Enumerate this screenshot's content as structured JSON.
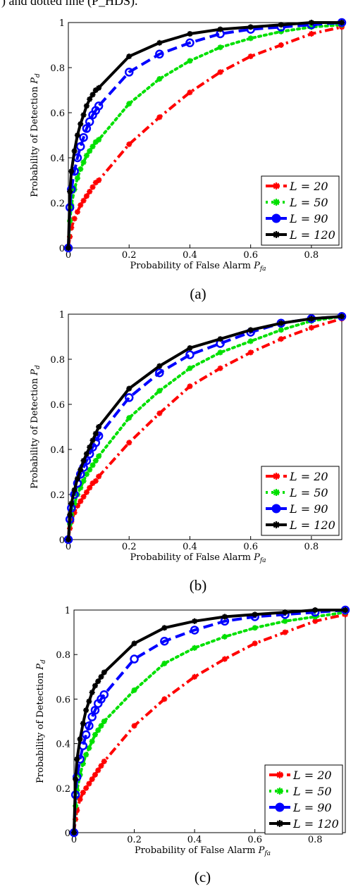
{
  "caption_fragment": ") and dotted line (P_HDS).",
  "chart_data": [
    {
      "type": "line",
      "subfigure_label": "(a)",
      "xlabel": "Probability of False Alarm P_fa",
      "ylabel": "Probability of Detection P_d",
      "xlim": [
        0,
        0.9
      ],
      "ylim": [
        0,
        1
      ],
      "xticks": [
        "0",
        "0.2",
        "0.4",
        "0.6",
        "0.8"
      ],
      "yticks": [
        "0",
        "0.2",
        "0.4",
        "0.6",
        "0.8",
        "1"
      ],
      "grid": false,
      "legend_position": "bottom-right",
      "series": [
        {
          "name": "L = 20",
          "color": "#ff0000",
          "style": "dash-dot",
          "marker": "star",
          "x": [
            0,
            0.005,
            0.01,
            0.02,
            0.03,
            0.04,
            0.05,
            0.06,
            0.07,
            0.08,
            0.09,
            0.1,
            0.2,
            0.3,
            0.4,
            0.5,
            0.6,
            0.7,
            0.8,
            0.9
          ],
          "y": [
            0,
            0.05,
            0.09,
            0.13,
            0.16,
            0.19,
            0.21,
            0.23,
            0.25,
            0.27,
            0.29,
            0.3,
            0.46,
            0.58,
            0.69,
            0.78,
            0.85,
            0.9,
            0.95,
            0.98
          ]
        },
        {
          "name": "L = 50",
          "color": "#00e000",
          "style": "dotted",
          "marker": "star",
          "x": [
            0,
            0.005,
            0.01,
            0.02,
            0.03,
            0.04,
            0.05,
            0.06,
            0.07,
            0.08,
            0.09,
            0.1,
            0.2,
            0.3,
            0.4,
            0.5,
            0.6,
            0.7,
            0.8,
            0.9
          ],
          "y": [
            0,
            0.12,
            0.19,
            0.26,
            0.31,
            0.35,
            0.38,
            0.41,
            0.43,
            0.45,
            0.47,
            0.48,
            0.64,
            0.75,
            0.83,
            0.89,
            0.93,
            0.96,
            0.98,
            0.99
          ]
        },
        {
          "name": "L = 90",
          "color": "#0000ff",
          "style": "dashed",
          "marker": "circle",
          "x": [
            0,
            0.005,
            0.01,
            0.02,
            0.03,
            0.04,
            0.05,
            0.06,
            0.07,
            0.08,
            0.09,
            0.1,
            0.2,
            0.3,
            0.4,
            0.5,
            0.6,
            0.7,
            0.8,
            0.9
          ],
          "y": [
            0,
            0.18,
            0.26,
            0.34,
            0.4,
            0.45,
            0.49,
            0.53,
            0.56,
            0.59,
            0.61,
            0.63,
            0.78,
            0.86,
            0.91,
            0.95,
            0.97,
            0.98,
            0.99,
            1.0
          ]
        },
        {
          "name": "L = 120",
          "color": "#000000",
          "style": "solid",
          "marker": "star",
          "x": [
            0,
            0.005,
            0.01,
            0.02,
            0.03,
            0.04,
            0.05,
            0.06,
            0.07,
            0.08,
            0.09,
            0.1,
            0.2,
            0.3,
            0.4,
            0.5,
            0.6,
            0.7,
            0.8,
            0.9
          ],
          "y": [
            0,
            0.25,
            0.34,
            0.43,
            0.5,
            0.55,
            0.59,
            0.63,
            0.66,
            0.68,
            0.7,
            0.71,
            0.85,
            0.91,
            0.95,
            0.97,
            0.98,
            0.99,
            1.0,
            1.0
          ]
        }
      ]
    },
    {
      "type": "line",
      "subfigure_label": "(b)",
      "xlabel": "Probability of False Alarm P_fa",
      "ylabel": "Probability of Detection P_d",
      "xlim": [
        0,
        0.9
      ],
      "ylim": [
        0,
        1
      ],
      "xticks": [
        "0",
        "0.2",
        "0.4",
        "0.6",
        "0.8"
      ],
      "yticks": [
        "0",
        "0.2",
        "0.4",
        "0.6",
        "0.8",
        "1"
      ],
      "grid": false,
      "legend_position": "bottom-right",
      "series": [
        {
          "name": "L = 20",
          "color": "#ff0000",
          "style": "dash-dot",
          "marker": "star",
          "x": [
            0,
            0.005,
            0.01,
            0.02,
            0.03,
            0.04,
            0.05,
            0.06,
            0.07,
            0.08,
            0.09,
            0.1,
            0.2,
            0.3,
            0.4,
            0.5,
            0.6,
            0.7,
            0.8,
            0.9
          ],
          "y": [
            0,
            0.05,
            0.08,
            0.12,
            0.15,
            0.17,
            0.19,
            0.21,
            0.23,
            0.25,
            0.26,
            0.28,
            0.43,
            0.56,
            0.68,
            0.76,
            0.83,
            0.89,
            0.94,
            0.98
          ]
        },
        {
          "name": "L = 50",
          "color": "#00e000",
          "style": "dotted",
          "marker": "star",
          "x": [
            0,
            0.005,
            0.01,
            0.02,
            0.03,
            0.04,
            0.05,
            0.06,
            0.07,
            0.08,
            0.09,
            0.1,
            0.2,
            0.3,
            0.4,
            0.5,
            0.6,
            0.7,
            0.8,
            0.9
          ],
          "y": [
            0,
            0.07,
            0.11,
            0.16,
            0.2,
            0.23,
            0.26,
            0.29,
            0.31,
            0.33,
            0.35,
            0.37,
            0.54,
            0.66,
            0.76,
            0.83,
            0.88,
            0.93,
            0.97,
            0.99
          ]
        },
        {
          "name": "L = 90",
          "color": "#0000ff",
          "style": "dashed",
          "marker": "circle",
          "x": [
            0,
            0.005,
            0.01,
            0.02,
            0.03,
            0.04,
            0.05,
            0.06,
            0.07,
            0.08,
            0.09,
            0.1,
            0.2,
            0.3,
            0.4,
            0.5,
            0.6,
            0.7,
            0.8,
            0.9
          ],
          "y": [
            0,
            0.09,
            0.14,
            0.2,
            0.25,
            0.29,
            0.32,
            0.35,
            0.38,
            0.41,
            0.43,
            0.46,
            0.63,
            0.74,
            0.82,
            0.87,
            0.92,
            0.96,
            0.98,
            0.99
          ]
        },
        {
          "name": "L = 120",
          "color": "#000000",
          "style": "solid",
          "marker": "star",
          "x": [
            0,
            0.005,
            0.01,
            0.02,
            0.03,
            0.04,
            0.05,
            0.06,
            0.07,
            0.08,
            0.09,
            0.1,
            0.2,
            0.3,
            0.4,
            0.5,
            0.6,
            0.7,
            0.8,
            0.9
          ],
          "y": [
            0,
            0.11,
            0.16,
            0.22,
            0.27,
            0.31,
            0.35,
            0.38,
            0.41,
            0.44,
            0.47,
            0.5,
            0.67,
            0.77,
            0.85,
            0.89,
            0.93,
            0.96,
            0.98,
            0.99
          ]
        }
      ]
    },
    {
      "type": "line",
      "subfigure_label": "(c)",
      "xlabel": "Probability of False Alarm P_fa",
      "ylabel": "Probability of Detection P_d",
      "xlim": [
        0,
        0.9
      ],
      "ylim": [
        0,
        1
      ],
      "xticks": [
        "0",
        "0.2",
        "0.4",
        "0.6",
        "0.8"
      ],
      "yticks": [
        "0",
        "0.2",
        "0.4",
        "0.6",
        "0.8",
        "1"
      ],
      "grid": false,
      "legend_position": "bottom-right",
      "series": [
        {
          "name": "L = 20",
          "color": "#ff0000",
          "style": "dash-dot",
          "marker": "star",
          "x": [
            0,
            0.005,
            0.01,
            0.02,
            0.03,
            0.04,
            0.05,
            0.06,
            0.07,
            0.08,
            0.09,
            0.1,
            0.2,
            0.3,
            0.4,
            0.5,
            0.6,
            0.7,
            0.8,
            0.9
          ],
          "y": [
            0,
            0.06,
            0.1,
            0.15,
            0.18,
            0.2,
            0.22,
            0.24,
            0.26,
            0.28,
            0.3,
            0.32,
            0.48,
            0.6,
            0.7,
            0.78,
            0.85,
            0.9,
            0.95,
            0.98
          ]
        },
        {
          "name": "L = 50",
          "color": "#00e000",
          "style": "dotted",
          "marker": "star",
          "x": [
            0,
            0.005,
            0.01,
            0.02,
            0.03,
            0.04,
            0.05,
            0.06,
            0.07,
            0.08,
            0.09,
            0.1,
            0.2,
            0.3,
            0.4,
            0.5,
            0.6,
            0.7,
            0.8,
            0.9
          ],
          "y": [
            0,
            0.12,
            0.19,
            0.26,
            0.31,
            0.35,
            0.38,
            0.41,
            0.44,
            0.46,
            0.48,
            0.5,
            0.64,
            0.76,
            0.83,
            0.88,
            0.92,
            0.95,
            0.97,
            0.99
          ]
        },
        {
          "name": "L = 90",
          "color": "#0000ff",
          "style": "dashed",
          "marker": "circle",
          "x": [
            0,
            0.005,
            0.01,
            0.02,
            0.03,
            0.04,
            0.05,
            0.06,
            0.07,
            0.08,
            0.09,
            0.1,
            0.2,
            0.3,
            0.4,
            0.5,
            0.6,
            0.7,
            0.8,
            0.9
          ],
          "y": [
            0,
            0.17,
            0.25,
            0.33,
            0.39,
            0.44,
            0.48,
            0.52,
            0.55,
            0.58,
            0.6,
            0.62,
            0.78,
            0.86,
            0.91,
            0.95,
            0.97,
            0.98,
            0.99,
            1.0
          ]
        },
        {
          "name": "L = 120",
          "color": "#000000",
          "style": "solid",
          "marker": "star",
          "x": [
            0,
            0.005,
            0.01,
            0.02,
            0.03,
            0.04,
            0.05,
            0.06,
            0.07,
            0.08,
            0.09,
            0.1,
            0.2,
            0.3,
            0.4,
            0.5,
            0.6,
            0.7,
            0.8,
            0.9
          ],
          "y": [
            0,
            0.24,
            0.33,
            0.42,
            0.49,
            0.55,
            0.59,
            0.63,
            0.66,
            0.68,
            0.7,
            0.72,
            0.85,
            0.92,
            0.95,
            0.97,
            0.98,
            0.99,
            1.0,
            1.0
          ]
        }
      ]
    }
  ]
}
